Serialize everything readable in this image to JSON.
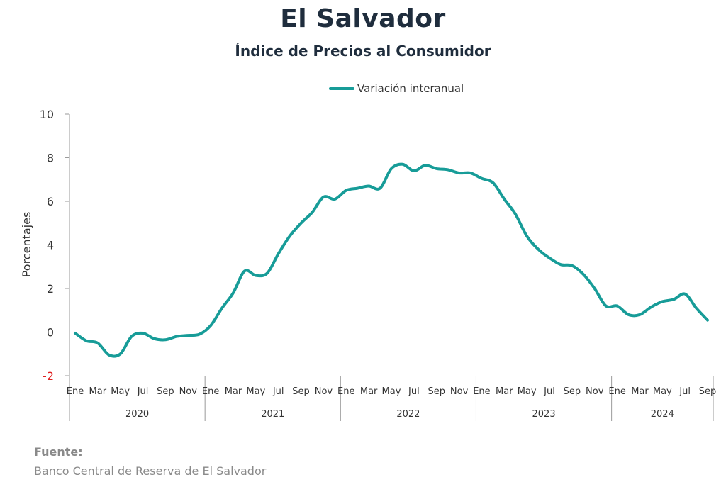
{
  "chart_data": {
    "type": "line",
    "title": "El Salvador",
    "subtitle": "Índice de Precios al Consumidor",
    "ylabel": "Porcentajes",
    "ylim": [
      -2,
      10
    ],
    "yticks": [
      -2,
      0,
      2,
      4,
      6,
      8,
      10
    ],
    "ytick_labels": [
      "-2",
      "0",
      "2",
      "4",
      "6",
      "8",
      "10"
    ],
    "negative_tick_color": "#e02020",
    "grid": false,
    "legend_position": "top-center",
    "series_color": "#179c98",
    "month_labels": [
      "Ene",
      "Mar",
      "May",
      "Jul",
      "Sep",
      "Nov"
    ],
    "last_year_month_labels": [
      "Ene",
      "Mar",
      "May",
      "Jul",
      "Sep"
    ],
    "years": [
      "2020",
      "2021",
      "2022",
      "2023",
      "2024"
    ],
    "series": [
      {
        "name": "Variación interanual",
        "values": [
          -0.05,
          -0.4,
          -0.5,
          -1.05,
          -1.0,
          -0.2,
          -0.05,
          -0.3,
          -0.35,
          -0.2,
          -0.15,
          -0.1,
          0.3,
          1.1,
          1.8,
          2.8,
          2.6,
          2.7,
          3.6,
          4.4,
          5.0,
          5.5,
          6.2,
          6.1,
          6.5,
          6.6,
          6.7,
          6.6,
          7.5,
          7.7,
          7.4,
          7.65,
          7.5,
          7.45,
          7.3,
          7.3,
          7.05,
          6.85,
          6.1,
          5.4,
          4.4,
          3.8,
          3.4,
          3.1,
          3.05,
          2.65,
          2.0,
          1.2,
          1.2,
          0.8,
          0.8,
          1.15,
          1.4,
          1.5,
          1.75,
          1.1,
          0.55
        ]
      }
    ]
  },
  "legend": {
    "label": "Variación interanual"
  },
  "source": {
    "heading": "Fuente:",
    "text": "Banco Central de Reserva de El Salvador"
  }
}
